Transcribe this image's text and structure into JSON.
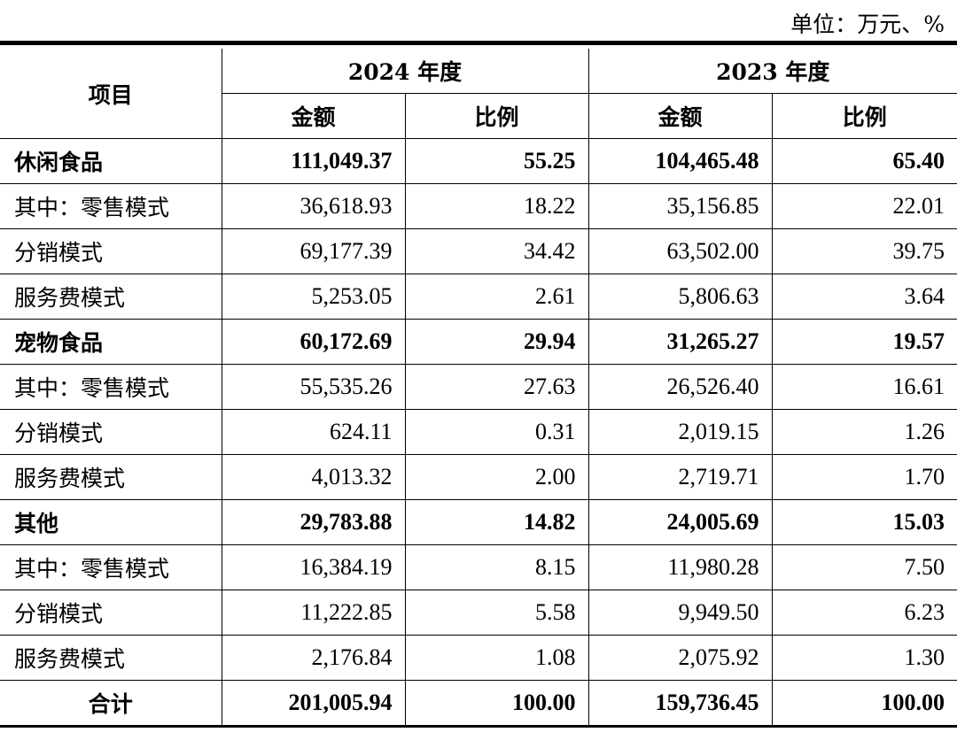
{
  "unit": "单位：万元、%",
  "header": {
    "item": "项目",
    "year_2024": "2024 年度",
    "year_2023": "2023 年度",
    "amount": "金额",
    "ratio": "比例"
  },
  "rows": [
    {
      "label": "休闲食品",
      "bold": true,
      "a2024": "111,049.37",
      "r2024": "55.25",
      "a2023": "104,465.48",
      "r2023": "65.40"
    },
    {
      "label": "其中：零售模式",
      "bold": false,
      "a2024": "36,618.93",
      "r2024": "18.22",
      "a2023": "35,156.85",
      "r2023": "22.01"
    },
    {
      "label": "分销模式",
      "bold": false,
      "a2024": "69,177.39",
      "r2024": "34.42",
      "a2023": "63,502.00",
      "r2023": "39.75"
    },
    {
      "label": "服务费模式",
      "bold": false,
      "a2024": "5,253.05",
      "r2024": "2.61",
      "a2023": "5,806.63",
      "r2023": "3.64"
    },
    {
      "label": "宠物食品",
      "bold": true,
      "a2024": "60,172.69",
      "r2024": "29.94",
      "a2023": "31,265.27",
      "r2023": "19.57"
    },
    {
      "label": "其中：零售模式",
      "bold": false,
      "a2024": "55,535.26",
      "r2024": "27.63",
      "a2023": "26,526.40",
      "r2023": "16.61"
    },
    {
      "label": "分销模式",
      "bold": false,
      "a2024": "624.11",
      "r2024": "0.31",
      "a2023": "2,019.15",
      "r2023": "1.26"
    },
    {
      "label": "服务费模式",
      "bold": false,
      "a2024": "4,013.32",
      "r2024": "2.00",
      "a2023": "2,719.71",
      "r2023": "1.70"
    },
    {
      "label": "其他",
      "bold": true,
      "a2024": "29,783.88",
      "r2024": "14.82",
      "a2023": "24,005.69",
      "r2023": "15.03"
    },
    {
      "label": "其中：零售模式",
      "bold": false,
      "a2024": "16,384.19",
      "r2024": "8.15",
      "a2023": "11,980.28",
      "r2023": "7.50"
    },
    {
      "label": "分销模式",
      "bold": false,
      "a2024": "11,222.85",
      "r2024": "5.58",
      "a2023": "9,949.50",
      "r2023": "6.23"
    },
    {
      "label": "服务费模式",
      "bold": false,
      "a2024": "2,176.84",
      "r2024": "1.08",
      "a2023": "2,075.92",
      "r2023": "1.30"
    }
  ],
  "total": {
    "label": "合计",
    "a2024": "201,005.94",
    "r2024": "100.00",
    "a2023": "159,736.45",
    "r2023": "100.00"
  }
}
